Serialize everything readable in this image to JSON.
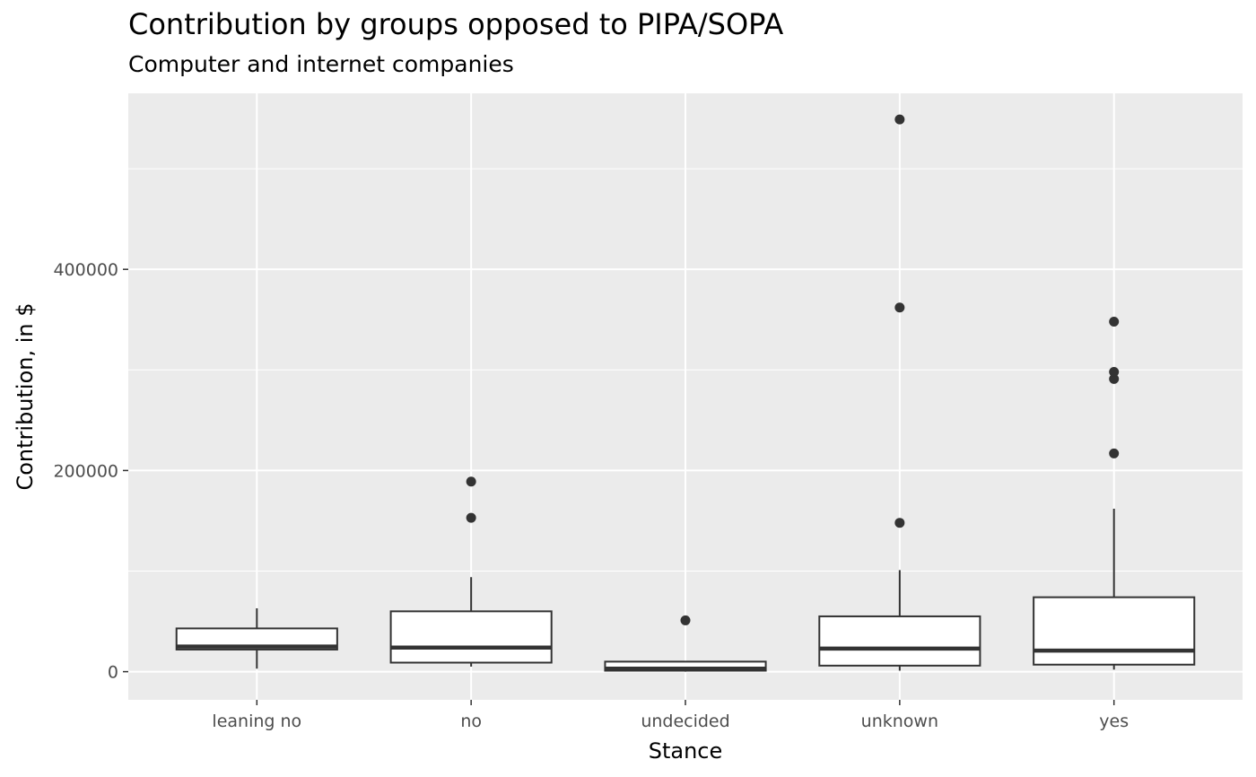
{
  "chart_data": {
    "type": "boxplot",
    "title": "Contribution by groups opposed to PIPA/SOPA",
    "subtitle": "Computer and internet companies",
    "xlabel": "Stance",
    "ylabel": "Contribution, in $",
    "categories": [
      "leaning no",
      "no",
      "undecided",
      "unknown",
      "yes"
    ],
    "y_ticks": [
      0,
      200000,
      400000
    ],
    "y_tick_labels": [
      "0",
      "200000",
      "400000"
    ],
    "ylim": [
      -28000,
      575000
    ],
    "grid": true,
    "boxes": [
      {
        "category": "leaning no",
        "whisker_low": 3000,
        "q1": 22000,
        "median": 25000,
        "q3": 43000,
        "whisker_high": 63000,
        "outliers": []
      },
      {
        "category": "no",
        "whisker_low": 5000,
        "q1": 9000,
        "median": 24000,
        "q3": 60000,
        "whisker_high": 94000,
        "outliers": [
          153000,
          189000
        ]
      },
      {
        "category": "undecided",
        "whisker_low": 0,
        "q1": 1000,
        "median": 3000,
        "q3": 10000,
        "whisker_high": 10000,
        "outliers": [
          51000
        ]
      },
      {
        "category": "unknown",
        "whisker_low": 1000,
        "q1": 6000,
        "median": 23000,
        "q3": 55000,
        "whisker_high": 101000,
        "outliers": [
          148000,
          362000,
          549000
        ]
      },
      {
        "category": "yes",
        "whisker_low": 2000,
        "q1": 7000,
        "median": 21000,
        "q3": 74000,
        "whisker_high": 162000,
        "outliers": [
          217000,
          291000,
          298000,
          348000
        ]
      }
    ],
    "colors": {
      "panel_bg": "#EBEBEB",
      "grid": "#FFFFFF",
      "box_fill": "#FFFFFF",
      "box_stroke": "#333333",
      "point": "#333333",
      "tick_text": "#4D4D4D",
      "axis_title": "#000000"
    }
  }
}
